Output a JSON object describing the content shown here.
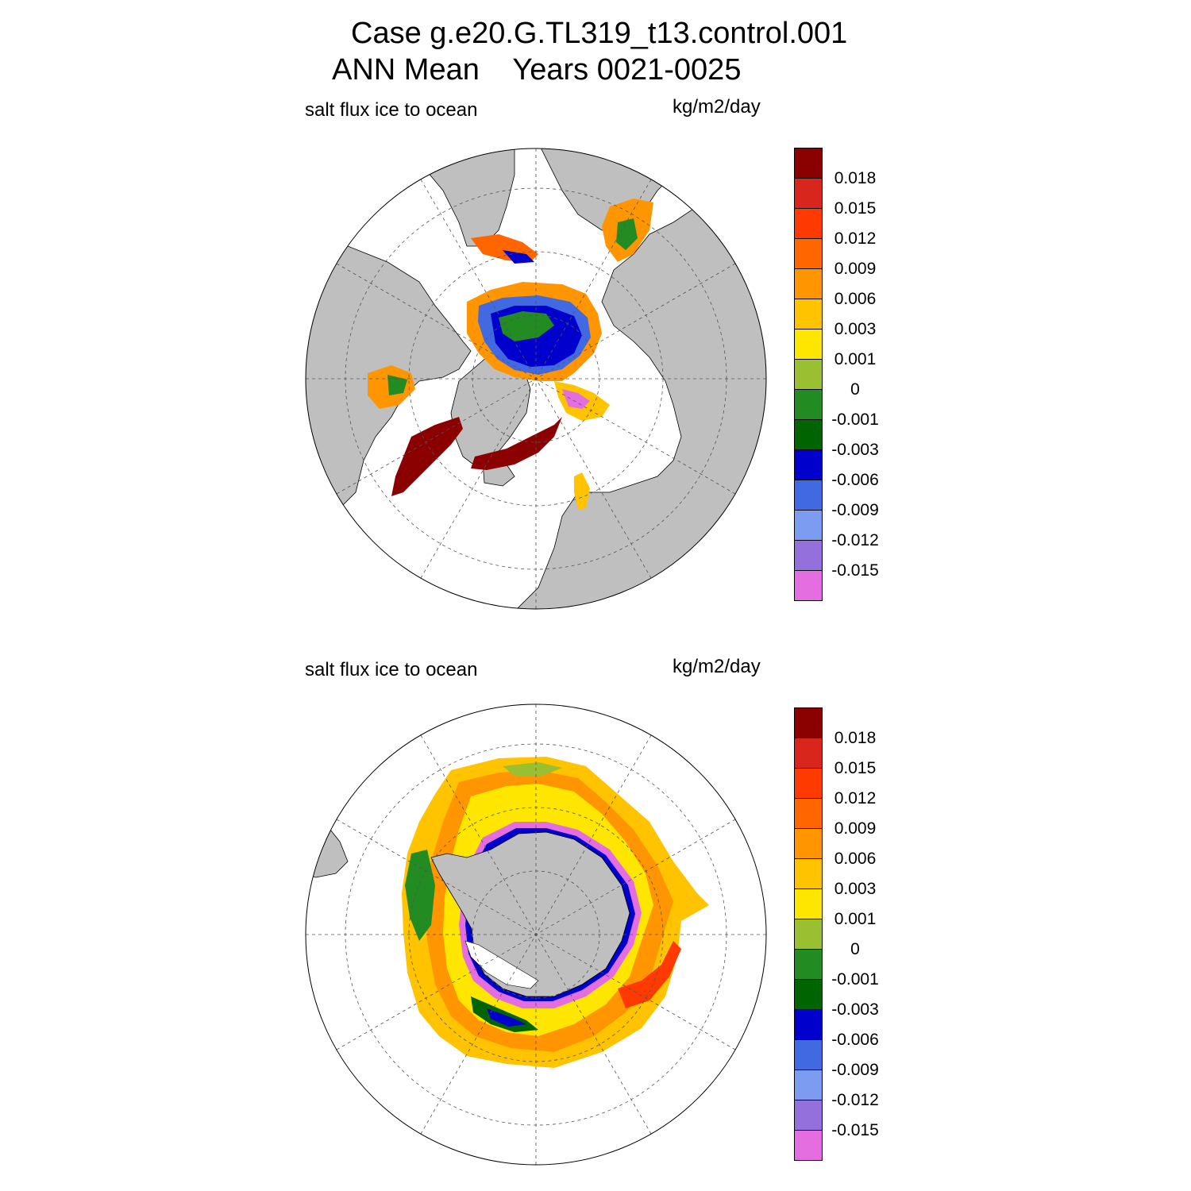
{
  "title": {
    "line1": "Case g.e20.G.TL319_t13.control.001",
    "line2": "ANN Mean    Years 0021-0025"
  },
  "panels": [
    {
      "id": "north",
      "label": "salt flux ice to ocean",
      "units": "kg/m2/day",
      "hemisphere": "north"
    },
    {
      "id": "south",
      "label": "salt flux ice to ocean",
      "units": "kg/m2/day",
      "hemisphere": "south"
    }
  ],
  "colorbar": {
    "labels": [
      "0.018",
      "0.015",
      "0.012",
      "0.009",
      "0.006",
      "0.003",
      "0.001",
      "0",
      "-0.001",
      "-0.003",
      "-0.006",
      "-0.009",
      "-0.012",
      "-0.015"
    ],
    "colors": [
      "#8b0000",
      "#d9261c",
      "#ff3a00",
      "#ff6600",
      "#ff9500",
      "#ffc300",
      "#ffe600",
      "#9abf30",
      "#228b22",
      "#006400",
      "#0000cd",
      "#4169e1",
      "#7b9cf0",
      "#9370db",
      "#e46ee0"
    ]
  },
  "colors": {
    "land": "#bfbfbf",
    "ocean": "#ffffff",
    "grid": "#555555"
  }
}
